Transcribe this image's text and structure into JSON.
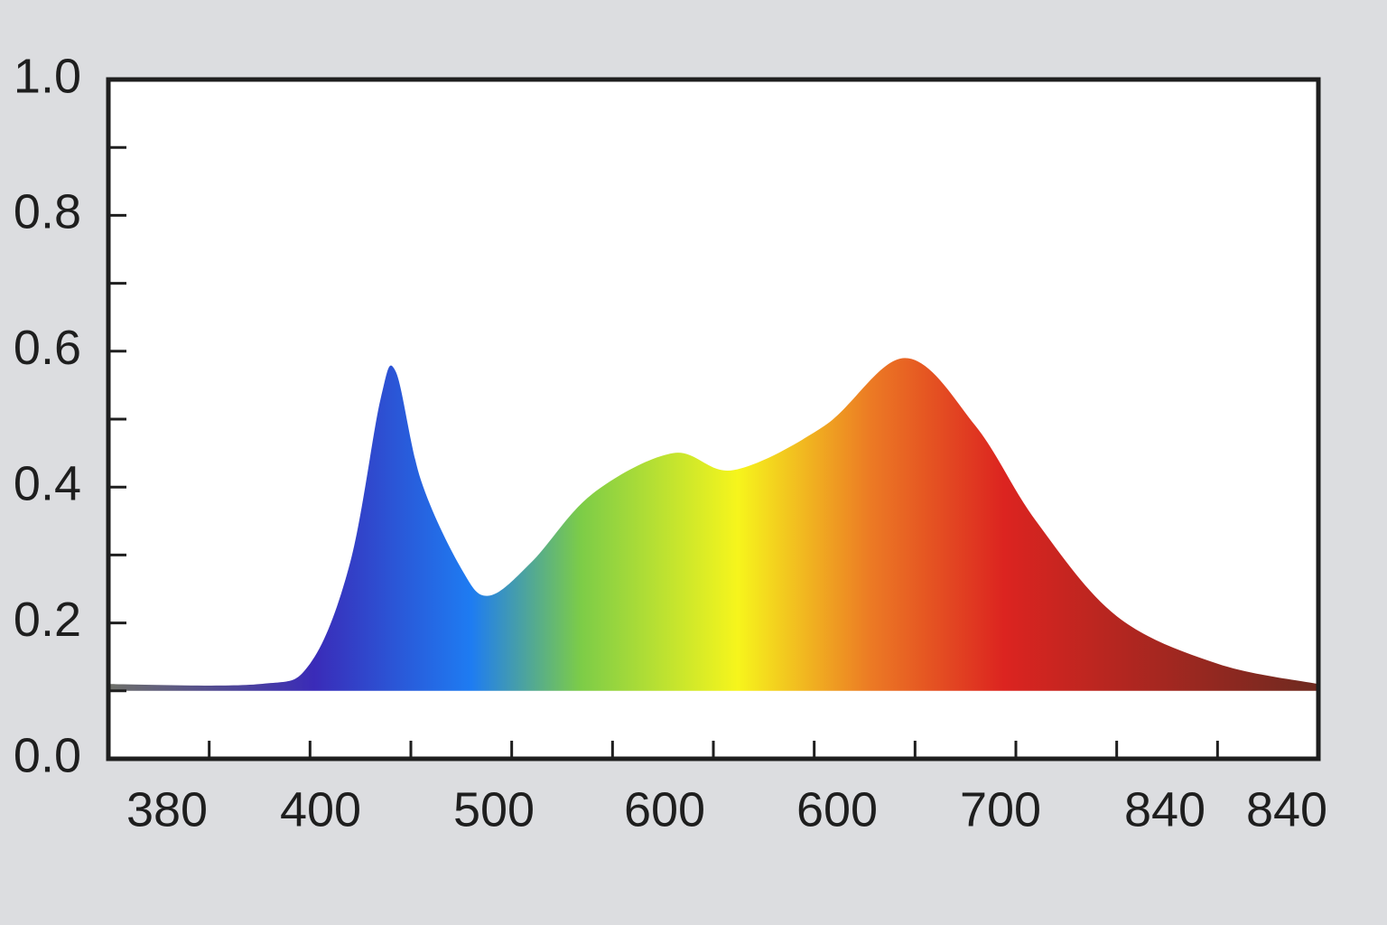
{
  "chart_data": {
    "type": "area",
    "x": [
      0,
      1.5,
      2,
      2.4,
      2.7,
      2.85,
      3.1,
      3.5,
      3.77,
      4.2,
      4.8,
      5.6,
      6.2,
      7.1,
      7.9,
      8.6,
      9.2,
      10,
      11,
      12
    ],
    "values": [
      0.11,
      0.11,
      0.14,
      0.29,
      0.53,
      0.57,
      0.41,
      0.28,
      0.24,
      0.29,
      0.39,
      0.45,
      0.425,
      0.49,
      0.59,
      0.49,
      0.35,
      0.21,
      0.14,
      0.11
    ],
    "baseline": 0.1,
    "xlim": [
      0,
      12
    ],
    "xticks": [
      1,
      2,
      3,
      4,
      5,
      6,
      7,
      8,
      9,
      10,
      11
    ],
    "x_labels": [
      "380",
      "400",
      "500",
      "600",
      "600",
      "700",
      "840",
      "840"
    ],
    "ylim": [
      0,
      1
    ],
    "yticks": [
      {
        "value": 0,
        "label": "0.0"
      },
      {
        "value": 0.2,
        "label": "0.2"
      },
      {
        "value": 0.4,
        "label": "0.4"
      },
      {
        "value": 0.6,
        "label": "0.6"
      },
      {
        "value": 0.8,
        "label": "0.8"
      },
      {
        "value": 1,
        "label": "1.0"
      }
    ],
    "yminorticks": [
      0.1,
      0.3,
      0.5,
      0.7,
      0.9
    ],
    "colors": [
      "#6e7068",
      "#3a2bb8",
      "#2a58d8",
      "#1e7cf2",
      "#7ccc48",
      "#f6f51c",
      "#ec7a24",
      "#dc2420",
      "#6e2a20"
    ]
  }
}
